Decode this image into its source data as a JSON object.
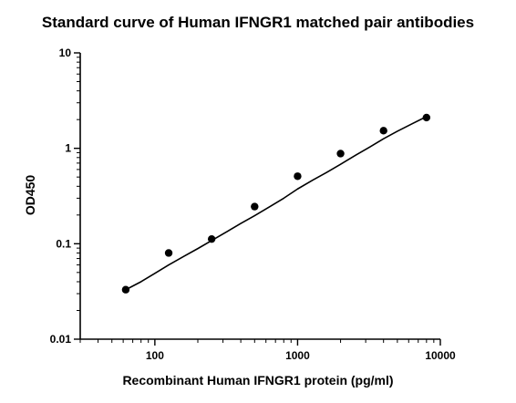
{
  "chart_data": {
    "type": "scatter",
    "title": "Standard curve of Human IFNGR1 matched pair antibodies",
    "xlabel": "Recombinant Human IFNGR1 protein (pg/ml)",
    "ylabel": "OD450",
    "xscale": "log",
    "yscale": "log",
    "xlim": [
      30,
      10000
    ],
    "ylim": [
      0.01,
      10
    ],
    "xticks": [
      100,
      1000,
      10000
    ],
    "xtick_labels": [
      "100",
      "1000",
      "10000"
    ],
    "yticks": [
      0.01,
      0.1,
      1,
      10
    ],
    "ytick_labels": [
      "0.01",
      "0.1",
      "1",
      "10"
    ],
    "grid": false,
    "series": [
      {
        "type": "scatter",
        "x": [
          62.5,
          125,
          250,
          500,
          1000,
          2000,
          4000,
          8000
        ],
        "y": [
          0.033,
          0.08,
          0.112,
          0.245,
          0.51,
          0.88,
          1.53,
          2.1
        ]
      },
      {
        "type": "line",
        "x": [
          62.5,
          80,
          100,
          125,
          160,
          200,
          250,
          320,
          400,
          500,
          640,
          800,
          1000,
          1280,
          1600,
          2000,
          2560,
          3200,
          4000,
          5000,
          6400,
          8000
        ],
        "y": [
          0.033,
          0.04,
          0.049,
          0.06,
          0.074,
          0.089,
          0.108,
          0.134,
          0.163,
          0.197,
          0.245,
          0.3,
          0.375,
          0.465,
          0.56,
          0.68,
          0.85,
          1.03,
          1.26,
          1.51,
          1.82,
          2.15
        ]
      }
    ]
  }
}
